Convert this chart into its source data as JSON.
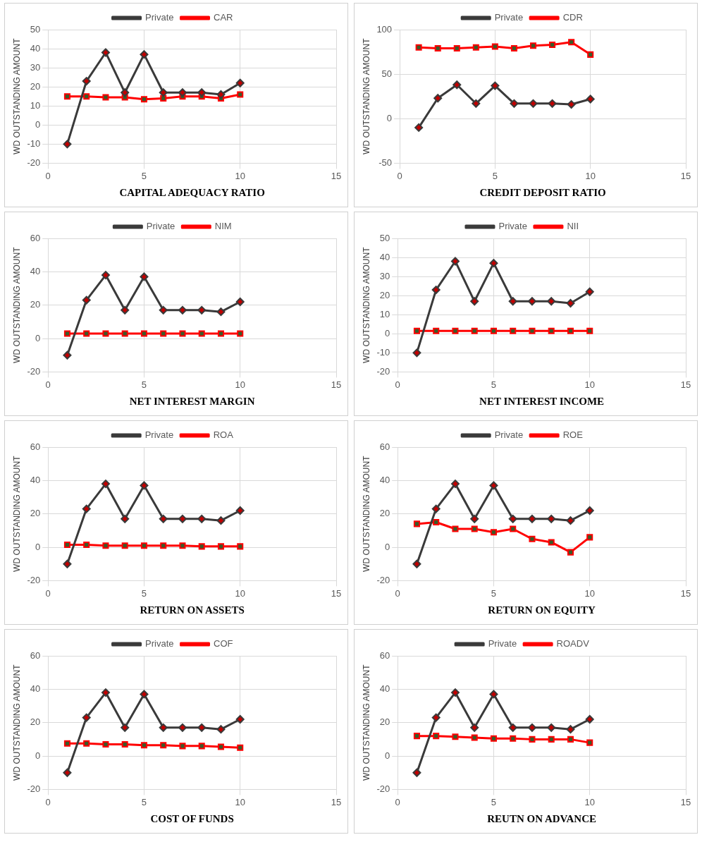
{
  "chart_data": [
    {
      "type": "line",
      "xlabel": "CAPITAL ADEQUACY RATIO",
      "ylabel": "WD OUTSTANDING AMOUNT",
      "x": [
        1,
        2,
        3,
        4,
        5,
        6,
        7,
        8,
        9,
        10
      ],
      "xlim": [
        0,
        15
      ],
      "xticks": [
        0,
        5,
        10,
        15
      ],
      "ylim": [
        -20,
        50
      ],
      "yticks": [
        -20,
        -10,
        0,
        10,
        20,
        30,
        40,
        50
      ],
      "grid": true,
      "legend": "top",
      "series": [
        {
          "name": "Private",
          "color": "#3a3a3a",
          "marker": "diamond",
          "values": [
            -10,
            23,
            38,
            17,
            37,
            17,
            17,
            17,
            16,
            22
          ]
        },
        {
          "name": "CAR",
          "color": "#ff0000",
          "marker": "square",
          "values": [
            15,
            15,
            14.5,
            14.5,
            13.5,
            14,
            15,
            15,
            14,
            16
          ]
        }
      ]
    },
    {
      "type": "line",
      "xlabel": "CREDIT DEPOSIT RATIO",
      "ylabel": "WD OUTSTANDING AMOUNT",
      "x": [
        1,
        2,
        3,
        4,
        5,
        6,
        7,
        8,
        9,
        10
      ],
      "xlim": [
        0,
        15
      ],
      "xticks": [
        0,
        5,
        10,
        15
      ],
      "ylim": [
        -50,
        100
      ],
      "yticks": [
        -50,
        0,
        50,
        100
      ],
      "grid": true,
      "legend": "top",
      "series": [
        {
          "name": "Private",
          "color": "#3a3a3a",
          "marker": "diamond",
          "values": [
            -10,
            23,
            38,
            17,
            37,
            17,
            17,
            17,
            16,
            22
          ]
        },
        {
          "name": "CDR",
          "color": "#ff0000",
          "marker": "square",
          "values": [
            80,
            79,
            79,
            80,
            81,
            79,
            82,
            83,
            86,
            72
          ]
        }
      ]
    },
    {
      "type": "line",
      "xlabel": "NET INTEREST MARGIN",
      "ylabel": "WD OUTSTANDING AMOUNT",
      "x": [
        1,
        2,
        3,
        4,
        5,
        6,
        7,
        8,
        9,
        10
      ],
      "xlim": [
        0,
        15
      ],
      "xticks": [
        0,
        5,
        10,
        15
      ],
      "ylim": [
        -20,
        60
      ],
      "yticks": [
        -20,
        0,
        20,
        40,
        60
      ],
      "grid": true,
      "legend": "top",
      "series": [
        {
          "name": "Private",
          "color": "#3a3a3a",
          "marker": "diamond",
          "values": [
            -10,
            23,
            38,
            17,
            37,
            17,
            17,
            17,
            16,
            22
          ]
        },
        {
          "name": "NIM",
          "color": "#ff0000",
          "marker": "square",
          "values": [
            3,
            3,
            3,
            3,
            3,
            3,
            3,
            3,
            3,
            3
          ]
        }
      ]
    },
    {
      "type": "line",
      "xlabel": "NET INTEREST INCOME",
      "ylabel": "WD OUTSTANDING AMOUNT",
      "x": [
        1,
        2,
        3,
        4,
        5,
        6,
        7,
        8,
        9,
        10
      ],
      "xlim": [
        0,
        15
      ],
      "xticks": [
        0,
        5,
        10,
        15
      ],
      "ylim": [
        -20,
        50
      ],
      "yticks": [
        -20,
        -10,
        0,
        10,
        20,
        30,
        40,
        50
      ],
      "grid": true,
      "legend": "top",
      "series": [
        {
          "name": "Private",
          "color": "#3a3a3a",
          "marker": "diamond",
          "values": [
            -10,
            23,
            38,
            17,
            37,
            17,
            17,
            17,
            16,
            22
          ]
        },
        {
          "name": "NII",
          "color": "#ff0000",
          "marker": "square",
          "values": [
            1.5,
            1.5,
            1.5,
            1.5,
            1.5,
            1.5,
            1.5,
            1.5,
            1.5,
            1.5
          ]
        }
      ]
    },
    {
      "type": "line",
      "xlabel": "RETURN ON ASSETS",
      "ylabel": "WD OUTSTANDING AMOUNT",
      "x": [
        1,
        2,
        3,
        4,
        5,
        6,
        7,
        8,
        9,
        10
      ],
      "xlim": [
        0,
        15
      ],
      "xticks": [
        0,
        5,
        10,
        15
      ],
      "ylim": [
        -20,
        60
      ],
      "yticks": [
        -20,
        0,
        20,
        40,
        60
      ],
      "grid": true,
      "legend": "top",
      "series": [
        {
          "name": "Private",
          "color": "#3a3a3a",
          "marker": "diamond",
          "values": [
            -10,
            23,
            38,
            17,
            37,
            17,
            17,
            17,
            16,
            22
          ]
        },
        {
          "name": "ROA",
          "color": "#ff0000",
          "marker": "square",
          "values": [
            1.5,
            1.5,
            1,
            1,
            1,
            1,
            1,
            0.5,
            0.5,
            0.5
          ]
        }
      ]
    },
    {
      "type": "line",
      "xlabel": "RETURN ON EQUITY",
      "ylabel": "WD OUTSTANDING AMOUNT",
      "x": [
        1,
        2,
        3,
        4,
        5,
        6,
        7,
        8,
        9,
        10
      ],
      "xlim": [
        0,
        15
      ],
      "xticks": [
        0,
        5,
        10,
        15
      ],
      "ylim": [
        -20,
        60
      ],
      "yticks": [
        -20,
        0,
        20,
        40,
        60
      ],
      "grid": true,
      "legend": "top",
      "series": [
        {
          "name": "Private",
          "color": "#3a3a3a",
          "marker": "diamond",
          "values": [
            -10,
            23,
            38,
            17,
            37,
            17,
            17,
            17,
            16,
            22
          ]
        },
        {
          "name": "ROE",
          "color": "#ff0000",
          "marker": "square",
          "values": [
            14,
            15,
            11,
            11,
            9,
            11,
            5,
            3,
            -3,
            6
          ]
        }
      ]
    },
    {
      "type": "line",
      "xlabel": "COST OF FUNDS",
      "ylabel": "WD OUTSTANDING AMOUNT",
      "x": [
        1,
        2,
        3,
        4,
        5,
        6,
        7,
        8,
        9,
        10
      ],
      "xlim": [
        0,
        15
      ],
      "xticks": [
        0,
        5,
        10,
        15
      ],
      "ylim": [
        -20,
        60
      ],
      "yticks": [
        -20,
        0,
        20,
        40,
        60
      ],
      "grid": true,
      "legend": "top",
      "series": [
        {
          "name": "Private",
          "color": "#3a3a3a",
          "marker": "diamond",
          "values": [
            -10,
            23,
            38,
            17,
            37,
            17,
            17,
            17,
            16,
            22
          ]
        },
        {
          "name": "COF",
          "color": "#ff0000",
          "marker": "square",
          "values": [
            7.5,
            7.5,
            7,
            7,
            6.5,
            6.5,
            6,
            6,
            5.5,
            5
          ]
        }
      ]
    },
    {
      "type": "line",
      "xlabel": "REUTN ON ADVANCE",
      "ylabel": "WD OUTSTANDING AMOUNT",
      "x": [
        1,
        2,
        3,
        4,
        5,
        6,
        7,
        8,
        9,
        10
      ],
      "xlim": [
        0,
        15
      ],
      "xticks": [
        0,
        5,
        10,
        15
      ],
      "ylim": [
        -20,
        60
      ],
      "yticks": [
        -20,
        0,
        20,
        40,
        60
      ],
      "grid": true,
      "legend": "top",
      "series": [
        {
          "name": "Private",
          "color": "#3a3a3a",
          "marker": "diamond",
          "values": [
            -10,
            23,
            38,
            17,
            37,
            17,
            17,
            17,
            16,
            22
          ]
        },
        {
          "name": "ROADV",
          "color": "#ff0000",
          "marker": "square",
          "values": [
            12,
            12,
            11.5,
            11,
            10.5,
            10.5,
            10,
            10,
            10,
            8
          ]
        }
      ]
    }
  ]
}
